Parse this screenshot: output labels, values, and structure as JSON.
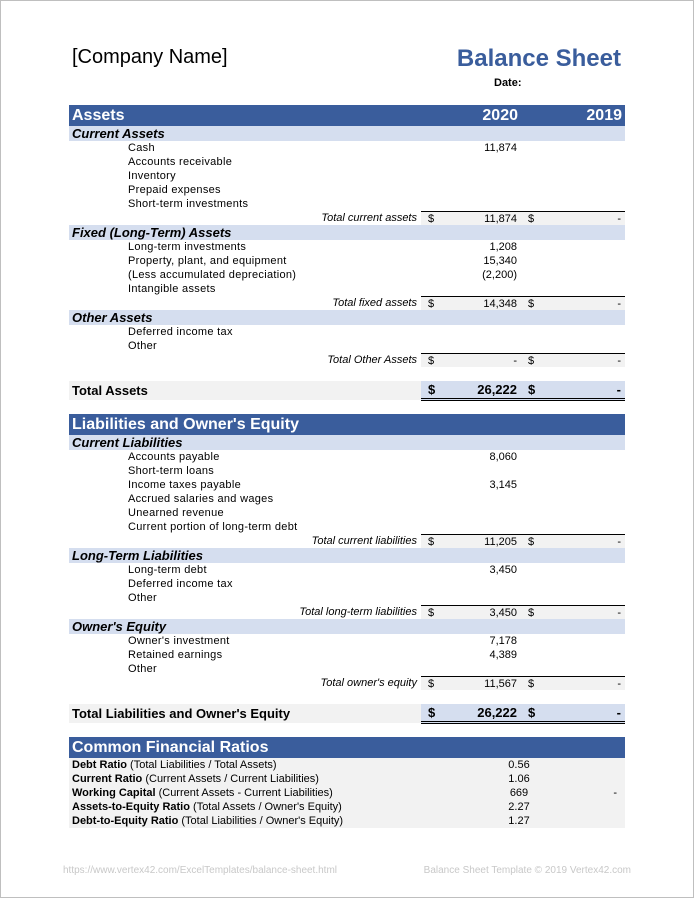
{
  "header": {
    "company": "[Company Name]",
    "title": "Balance Sheet",
    "date_label": "Date:"
  },
  "years": [
    "2020",
    "2019"
  ],
  "currency": "$",
  "assets": {
    "title": "Assets",
    "groups": [
      {
        "title": "Current Assets",
        "items": [
          {
            "label": "Cash",
            "y2020": "11,874",
            "y2019": ""
          },
          {
            "label": "Accounts receivable",
            "y2020": "",
            "y2019": ""
          },
          {
            "label": "Inventory",
            "y2020": "",
            "y2019": ""
          },
          {
            "label": "Prepaid expenses",
            "y2020": "",
            "y2019": ""
          },
          {
            "label": "Short-term investments",
            "y2020": "",
            "y2019": ""
          }
        ],
        "total": {
          "label": "Total current assets",
          "y2020": "11,874",
          "y2019": "-"
        }
      },
      {
        "title": "Fixed (Long-Term) Assets",
        "items": [
          {
            "label": "Long-term investments",
            "y2020": "1,208",
            "y2019": ""
          },
          {
            "label": "Property, plant, and equipment",
            "y2020": "15,340",
            "y2019": ""
          },
          {
            "label": "(Less accumulated depreciation)",
            "y2020": "(2,200)",
            "y2019": ""
          },
          {
            "label": "Intangible assets",
            "y2020": "",
            "y2019": ""
          }
        ],
        "total": {
          "label": "Total fixed assets",
          "y2020": "14,348",
          "y2019": "-"
        }
      },
      {
        "title": "Other Assets",
        "items": [
          {
            "label": "Deferred income tax",
            "y2020": "",
            "y2019": ""
          },
          {
            "label": "Other",
            "y2020": "",
            "y2019": ""
          }
        ],
        "total": {
          "label": "Total Other Assets",
          "y2020": "-",
          "y2019": "-"
        }
      }
    ],
    "grand": {
      "label": "Total Assets",
      "y2020": "26,222",
      "y2019": "-"
    }
  },
  "liabilities": {
    "title": "Liabilities and Owner's Equity",
    "groups": [
      {
        "title": "Current Liabilities",
        "items": [
          {
            "label": "Accounts payable",
            "y2020": "8,060",
            "y2019": ""
          },
          {
            "label": "Short-term loans",
            "y2020": "",
            "y2019": ""
          },
          {
            "label": "Income taxes payable",
            "y2020": "3,145",
            "y2019": ""
          },
          {
            "label": "Accrued salaries and wages",
            "y2020": "",
            "y2019": ""
          },
          {
            "label": "Unearned revenue",
            "y2020": "",
            "y2019": ""
          },
          {
            "label": "Current portion of long-term debt",
            "y2020": "",
            "y2019": ""
          }
        ],
        "total": {
          "label": "Total current liabilities",
          "y2020": "11,205",
          "y2019": "-"
        }
      },
      {
        "title": "Long-Term Liabilities",
        "items": [
          {
            "label": "Long-term debt",
            "y2020": "3,450",
            "y2019": ""
          },
          {
            "label": "Deferred income tax",
            "y2020": "",
            "y2019": ""
          },
          {
            "label": "Other",
            "y2020": "",
            "y2019": ""
          }
        ],
        "total": {
          "label": "Total long-term liabilities",
          "y2020": "3,450",
          "y2019": "-"
        }
      },
      {
        "title": "Owner's Equity",
        "items": [
          {
            "label": "Owner's investment",
            "y2020": "7,178",
            "y2019": ""
          },
          {
            "label": "Retained earnings",
            "y2020": "4,389",
            "y2019": ""
          },
          {
            "label": "Other",
            "y2020": "",
            "y2019": ""
          }
        ],
        "total": {
          "label": "Total owner's equity",
          "y2020": "11,567",
          "y2019": "-"
        }
      }
    ],
    "grand": {
      "label": "Total Liabilities and Owner's Equity",
      "y2020": "26,222",
      "y2019": "-"
    }
  },
  "ratios": {
    "title": "Common Financial Ratios",
    "items": [
      {
        "name": "Debt Ratio",
        "desc": " (Total Liabilities / Total Assets)",
        "y2020": "0.56",
        "y2019": ""
      },
      {
        "name": "Current Ratio",
        "desc": " (Current Assets / Current Liabilities)",
        "y2020": "1.06",
        "y2019": ""
      },
      {
        "name": "Working Capital",
        "desc": " (Current Assets - Current Liabilities)",
        "y2020": "669",
        "y2019": "-"
      },
      {
        "name": "Assets-to-Equity Ratio",
        "desc": " (Total Assets / Owner's Equity)",
        "y2020": "2.27",
        "y2019": ""
      },
      {
        "name": "Debt-to-Equity Ratio",
        "desc": " (Total Liabilities / Owner's Equity)",
        "y2020": "1.27",
        "y2019": ""
      }
    ]
  },
  "footer": {
    "url": "https://www.vertex42.com/ExcelTemplates/balance-sheet.html",
    "copyright": "Balance Sheet Template © 2019 Vertex42.com"
  },
  "colors": {
    "header_blue": "#3A5D9C",
    "subheader": "#D5DEEF",
    "total_bg": "#F2F2F2"
  }
}
